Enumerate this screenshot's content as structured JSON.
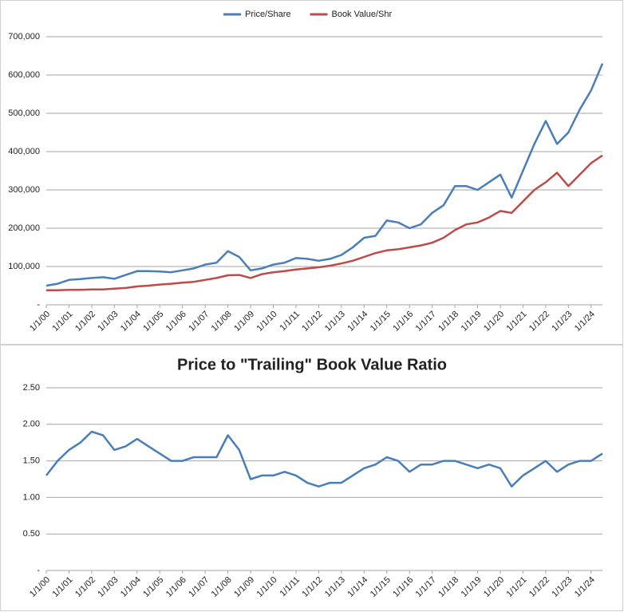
{
  "chart_data": [
    {
      "type": "line",
      "categories": [
        "1/1/00",
        null,
        "1/1/01",
        null,
        "1/1/02",
        null,
        "1/1/03",
        null,
        "1/1/04",
        null,
        "1/1/05",
        null,
        "1/1/06",
        null,
        "1/1/07",
        null,
        "1/1/08",
        null,
        "1/1/09",
        null,
        "1/1/10",
        null,
        "1/1/11",
        null,
        "1/1/12",
        null,
        "1/1/13",
        null,
        "1/1/14",
        null,
        "1/1/15",
        null,
        "1/1/16",
        null,
        "1/1/17",
        null,
        "1/1/18",
        null,
        "1/1/19",
        null,
        "1/1/20",
        null,
        "1/1/21",
        null,
        "1/1/22",
        null,
        "1/1/23",
        null,
        "1/1/24",
        null
      ],
      "series": [
        {
          "name": "Price/Share",
          "color": "#4a7ebb",
          "values": [
            50000,
            55000,
            65000,
            67000,
            70000,
            72000,
            68000,
            78000,
            88000,
            88000,
            87000,
            85000,
            90000,
            95000,
            105000,
            110000,
            140000,
            125000,
            90000,
            95000,
            105000,
            110000,
            122000,
            120000,
            115000,
            120000,
            130000,
            150000,
            175000,
            180000,
            220000,
            215000,
            200000,
            210000,
            240000,
            260000,
            310000,
            310000,
            300000,
            320000,
            340000,
            280000,
            350000,
            420000,
            480000,
            420000,
            450000,
            510000,
            560000,
            630000
          ]
        },
        {
          "name": "Book Value/Shr",
          "color": "#be4b48",
          "values": [
            38000,
            38000,
            39000,
            39000,
            40000,
            40000,
            42000,
            44000,
            48000,
            50000,
            53000,
            55000,
            58000,
            60000,
            65000,
            70000,
            77000,
            78000,
            70000,
            80000,
            85000,
            88000,
            92000,
            95000,
            98000,
            102000,
            108000,
            115000,
            125000,
            135000,
            142000,
            145000,
            150000,
            155000,
            162000,
            175000,
            195000,
            210000,
            215000,
            228000,
            245000,
            240000,
            270000,
            300000,
            320000,
            345000,
            310000,
            340000,
            370000,
            390000
          ]
        }
      ],
      "ylim": [
        0,
        700000
      ],
      "yticks": [
        {
          "value": 0,
          "label": "-"
        },
        {
          "value": 100000,
          "label": "100,000"
        },
        {
          "value": 200000,
          "label": "200,000"
        },
        {
          "value": 300000,
          "label": "300,000"
        },
        {
          "value": 400000,
          "label": "400,000"
        },
        {
          "value": 500000,
          "label": "500,000"
        },
        {
          "value": 600000,
          "label": "600,000"
        },
        {
          "value": 700000,
          "label": "700,000"
        }
      ],
      "grid": true,
      "legend": "top"
    },
    {
      "type": "line",
      "title": "Price to \"Trailing\" Book Value Ratio",
      "categories": [
        "1/1/00",
        null,
        "1/1/01",
        null,
        "1/1/02",
        null,
        "1/1/03",
        null,
        "1/1/04",
        null,
        "1/1/05",
        null,
        "1/1/06",
        null,
        "1/1/07",
        null,
        "1/1/08",
        null,
        "1/1/09",
        null,
        "1/1/10",
        null,
        "1/1/11",
        null,
        "1/1/12",
        null,
        "1/1/13",
        null,
        "1/1/14",
        null,
        "1/1/15",
        null,
        "1/1/16",
        null,
        "1/1/17",
        null,
        "1/1/18",
        null,
        "1/1/19",
        null,
        "1/1/20",
        null,
        "1/1/21",
        null,
        "1/1/22",
        null,
        "1/1/23",
        null,
        "1/1/24",
        null
      ],
      "series": [
        {
          "color": "#4a7ebb",
          "values": [
            1.3,
            1.5,
            1.65,
            1.75,
            1.9,
            1.85,
            1.65,
            1.7,
            1.8,
            1.7,
            1.6,
            1.5,
            1.5,
            1.55,
            1.55,
            1.55,
            1.85,
            1.65,
            1.25,
            1.3,
            1.3,
            1.35,
            1.3,
            1.2,
            1.15,
            1.2,
            1.2,
            1.3,
            1.4,
            1.45,
            1.55,
            1.5,
            1.35,
            1.45,
            1.45,
            1.5,
            1.5,
            1.45,
            1.4,
            1.45,
            1.4,
            1.15,
            1.3,
            1.4,
            1.5,
            1.35,
            1.45,
            1.5,
            1.5,
            1.6
          ]
        }
      ],
      "ylim": [
        0,
        2.5
      ],
      "yticks": [
        {
          "value": 0,
          "label": "-"
        },
        {
          "value": 0.5,
          "label": "0.50"
        },
        {
          "value": 1,
          "label": "1.00"
        },
        {
          "value": 1.5,
          "label": "1.50"
        },
        {
          "value": 2,
          "label": "2.00"
        },
        {
          "value": 2.5,
          "label": "2.50"
        }
      ],
      "grid": true
    }
  ]
}
